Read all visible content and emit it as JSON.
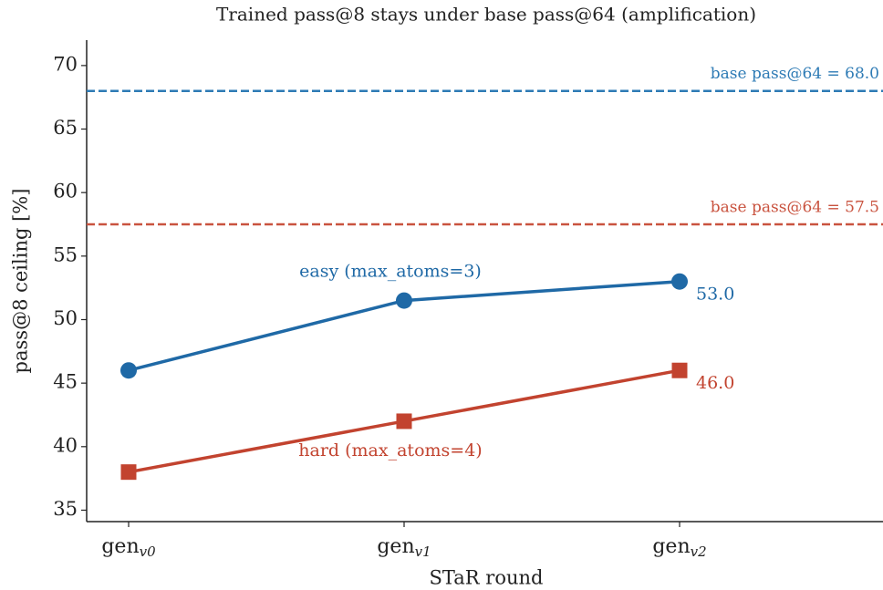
{
  "chart_data": {
    "type": "line",
    "title": "Trained pass@8 stays under base pass@64  (amplification)",
    "x_label": "STaR round",
    "y_label": "pass@8 ceiling  [%]",
    "categories": [
      "gen_v0",
      "gen_v1",
      "gen_v2"
    ],
    "series": [
      {
        "name": "easy (max_atoms=3)",
        "color": "#1f69a6",
        "marker": "circle",
        "values": [
          46,
          51.5,
          53
        ],
        "value_labels": [
          null,
          null,
          "53.0"
        ]
      },
      {
        "name": "hard (max_atoms=4)",
        "color": "#c2432f",
        "marker": "square",
        "values": [
          38,
          42,
          46
        ],
        "value_labels": [
          null,
          null,
          "46.0"
        ]
      }
    ],
    "reference_lines": [
      {
        "value": 68,
        "label": "base pass@64 = 68.0",
        "color": "#2e7bb5"
      },
      {
        "value": 57.5,
        "label": "base pass@64 = 57.5",
        "color": "#c9533f"
      }
    ],
    "ylim": [
      34.1,
      72
    ],
    "yticks": [
      35,
      40,
      45,
      50,
      55,
      60,
      65,
      70
    ],
    "grid": false
  }
}
